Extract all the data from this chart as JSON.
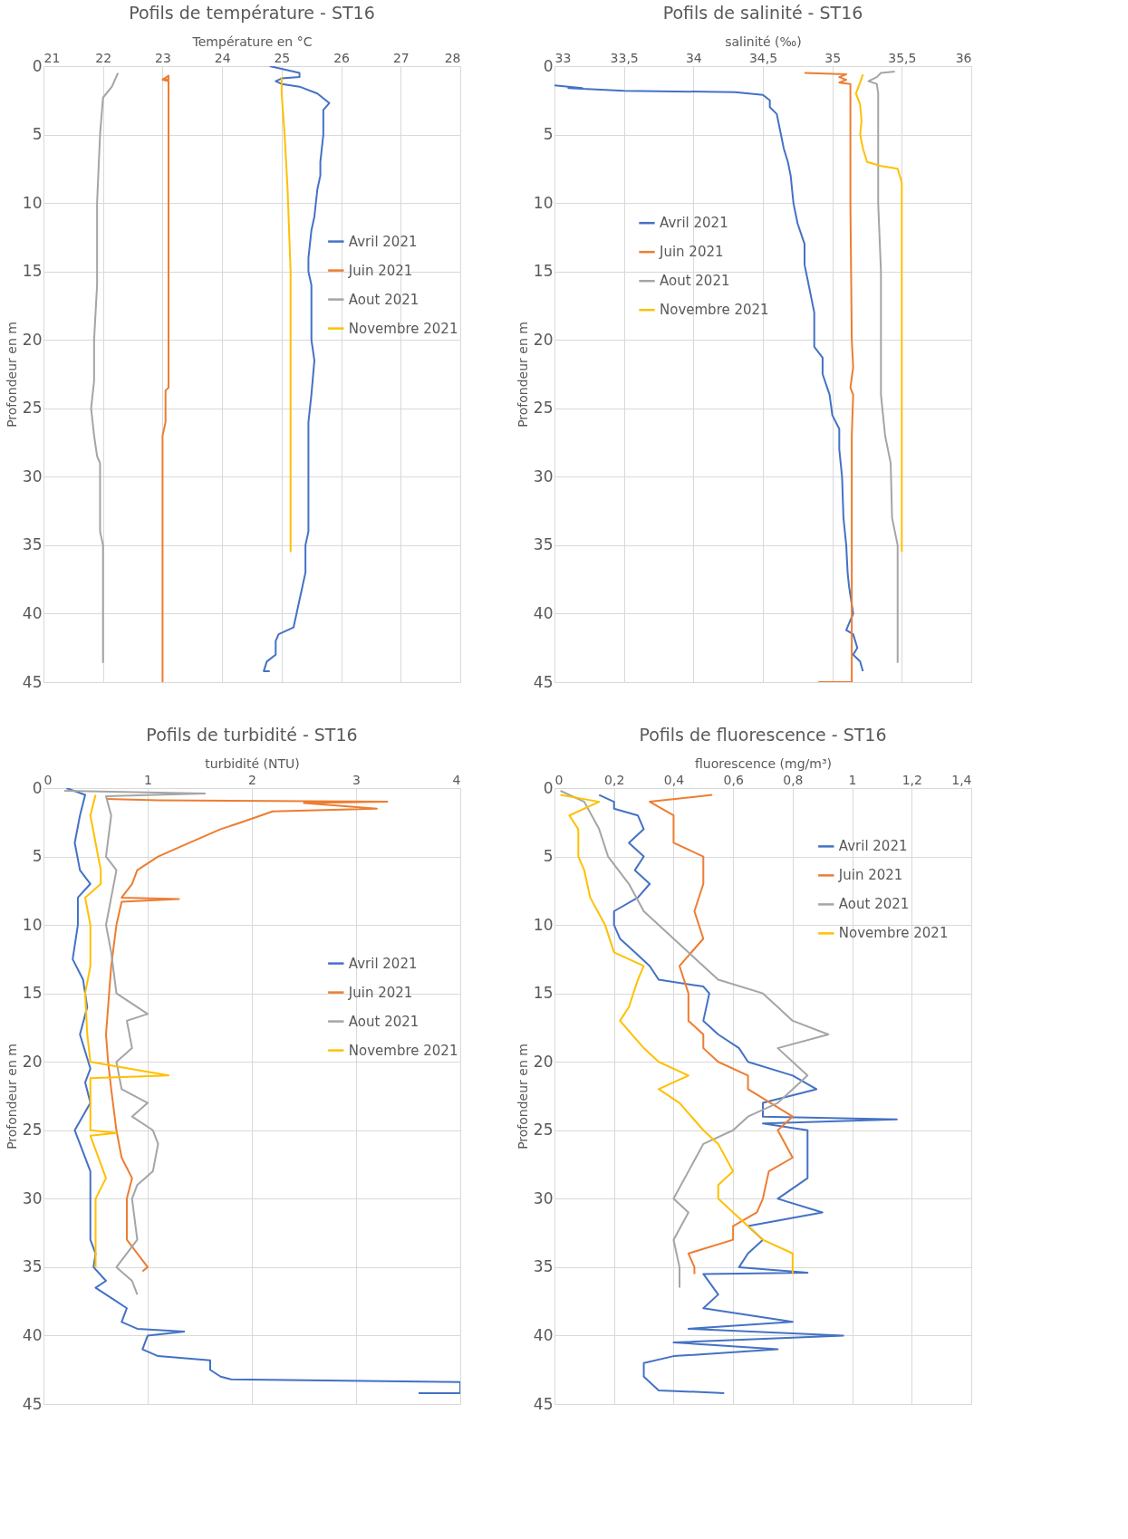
{
  "chart_data": [
    {
      "type": "line",
      "title": "Pofils de température - ST16",
      "xlabel": "Température en °C",
      "ylabel": "Profondeur en m",
      "xlim": [
        21,
        28
      ],
      "xticks": [
        21,
        22,
        23,
        24,
        25,
        26,
        27,
        28
      ],
      "ylim": [
        45,
        0
      ],
      "yticks": [
        0,
        5,
        10,
        15,
        20,
        25,
        30,
        35,
        40,
        45
      ],
      "grid": true,
      "legend": "right",
      "series": [
        {
          "name": "Avril 2021",
          "color": "#4472c4",
          "x": [
            24.8,
            25.1,
            25.3,
            25.3,
            25.0,
            24.9,
            25.0,
            25.3,
            25.6,
            25.8,
            25.7,
            25.7,
            25.65,
            25.65,
            25.6,
            25.55,
            25.5,
            25.45,
            25.45,
            25.5,
            25.5,
            25.55,
            25.5,
            25.45,
            25.45,
            25.45,
            25.45,
            25.4,
            25.4,
            25.35,
            25.3,
            25.25,
            25.2,
            24.95,
            24.9,
            24.9,
            24.75,
            24.7,
            24.8
          ],
          "values": [
            0,
            0.3,
            0.5,
            0.8,
            0.9,
            1.1,
            1.3,
            1.5,
            2.0,
            2.7,
            3.2,
            5,
            7,
            8,
            9,
            11,
            12,
            14,
            15,
            16,
            20,
            21.5,
            24,
            26,
            27,
            30,
            34,
            35,
            37,
            38,
            39,
            40,
            41,
            41.5,
            42,
            43,
            43.5,
            44.2,
            44.2
          ]
        },
        {
          "name": "Juin 2021",
          "color": "#ed7d31",
          "x": [
            23.0,
            23.1,
            23.1,
            23.0,
            23.1,
            23.1,
            23.1,
            23.1,
            23.1,
            23.05,
            23.05,
            23.0,
            23.0,
            23.0,
            23.0
          ],
          "values": [
            0.9,
            1.0,
            0.7,
            1.0,
            1.1,
            10,
            20,
            22,
            23.5,
            23.7,
            26,
            27,
            30,
            33,
            45
          ]
        },
        {
          "name": "Aout 2021",
          "color": "#a5a5a5",
          "x": [
            22.25,
            22.2,
            22.15,
            22.0,
            21.95,
            21.9,
            21.9,
            21.9,
            21.85,
            21.85,
            21.8,
            21.85,
            21.9,
            21.95,
            21.95,
            21.95,
            22.0,
            22.0
          ],
          "values": [
            0.5,
            1.0,
            1.5,
            2.3,
            5,
            10,
            11,
            16,
            20,
            23,
            25,
            27,
            28.5,
            29,
            33,
            34,
            35,
            43.6
          ]
        },
        {
          "name": "Novembre 2021",
          "color": "#ffc000",
          "x": [
            25.0,
            25.0,
            25.05,
            25.1,
            25.15,
            25.15,
            25.15
          ],
          "values": [
            0.8,
            2,
            5,
            9,
            15,
            20,
            35.5
          ]
        }
      ]
    },
    {
      "type": "line",
      "title": "Pofils de salinité - ST16",
      "xlabel": "salinité (‰)",
      "ylabel": "Profondeur en m",
      "xlim": [
        33,
        36
      ],
      "xticks": [
        33,
        {
          "value": 33.5,
          "label": "33,5"
        },
        34,
        {
          "value": 34.5,
          "label": "34,5"
        },
        35,
        {
          "value": 35.5,
          "label": "35,5"
        },
        36
      ],
      "ylim": [
        45,
        0
      ],
      "yticks": [
        0,
        5,
        10,
        15,
        20,
        25,
        30,
        35,
        40,
        45
      ],
      "grid": true,
      "legend": "left",
      "series": [
        {
          "name": "Avril 2021",
          "color": "#4472c4",
          "x": [
            33.0,
            33.2,
            33.1,
            33.5,
            34.3,
            34.5,
            34.55,
            34.55,
            34.6,
            34.63,
            34.65,
            34.68,
            34.7,
            34.72,
            34.75,
            34.8,
            34.8,
            34.82,
            34.85,
            34.87,
            34.87,
            34.93,
            34.93,
            34.98,
            35.0,
            35.05,
            35.05,
            35.07,
            35.08,
            35.1,
            35.11,
            35.12,
            35.15,
            35.1,
            35.15,
            35.18,
            35.15,
            35.2,
            35.22
          ],
          "values": [
            1.4,
            1.6,
            1.6,
            1.8,
            1.9,
            2.1,
            2.5,
            3,
            3.5,
            5,
            6,
            7,
            8,
            10,
            11.5,
            13,
            14.5,
            15.5,
            17,
            18,
            20.5,
            21.3,
            22.5,
            24,
            25.5,
            26.5,
            28,
            30,
            33,
            35,
            37,
            38,
            40,
            41.2,
            41.5,
            42.5,
            43,
            43.5,
            44.2
          ]
        },
        {
          "name": "Juin 2021",
          "color": "#ed7d31",
          "x": [
            34.8,
            35.1,
            35.05,
            35.1,
            35.05,
            35.13,
            35.13,
            35.14,
            35.15,
            35.13,
            35.15,
            35.14,
            35.14,
            35.14,
            35.14,
            34.9
          ],
          "values": [
            0.5,
            0.6,
            0.8,
            1.0,
            1.2,
            1.3,
            10,
            20,
            22,
            23.5,
            24,
            27,
            30,
            40,
            45,
            45
          ]
        },
        {
          "name": "Aout 2021",
          "color": "#a5a5a5",
          "x": [
            35.45,
            35.35,
            35.32,
            35.26,
            35.32,
            35.33,
            35.33,
            35.33,
            35.35,
            35.35,
            35.35,
            35.38,
            35.4,
            35.42,
            35.43,
            35.47,
            35.47
          ],
          "values": [
            0.4,
            0.5,
            0.8,
            1.1,
            1.3,
            2,
            5,
            10,
            15,
            20,
            24,
            27,
            28,
            29,
            33,
            35,
            43.6
          ]
        },
        {
          "name": "Novembre 2021",
          "color": "#ffc000",
          "x": [
            35.22,
            35.2,
            35.17,
            35.2,
            35.21,
            35.2,
            35.22,
            35.25,
            35.35,
            35.47,
            35.5,
            35.5,
            35.5,
            35.5
          ],
          "values": [
            0.6,
            1.2,
            2,
            2.8,
            4,
            5,
            6,
            7,
            7.3,
            7.5,
            8.5,
            12,
            20,
            35.5
          ]
        }
      ]
    },
    {
      "type": "line",
      "title": "Pofils de turbidité - ST16",
      "xlabel": "turbidité (NTU)",
      "ylabel": "Profondeur en m",
      "xlim": [
        0,
        4
      ],
      "xticks": [
        0,
        1,
        2,
        3,
        4
      ],
      "ylim": [
        45,
        0
      ],
      "yticks": [
        0,
        5,
        10,
        15,
        20,
        25,
        30,
        35,
        40,
        45
      ],
      "grid": true,
      "legend": "right",
      "series": [
        {
          "name": "Avril 2021",
          "color": "#4472c4",
          "x": [
            0.22,
            0.4,
            0.35,
            0.3,
            0.35,
            0.45,
            0.33,
            0.33,
            0.28,
            0.38,
            0.42,
            0.35,
            0.45,
            0.4,
            0.45,
            0.3,
            0.35,
            0.45,
            0.45,
            0.45,
            0.5,
            0.48,
            0.6,
            0.5,
            0.7,
            0.8,
            0.75,
            0.9,
            1.35,
            1.0,
            0.95,
            1.1,
            1.6,
            1.6,
            1.7,
            1.8,
            4.0,
            4.0,
            3.6
          ],
          "values": [
            0,
            0.5,
            2,
            4,
            6,
            7,
            8,
            10,
            12.5,
            14,
            16,
            18,
            20.5,
            21.5,
            23,
            25,
            26,
            28,
            30,
            33,
            34,
            35,
            36,
            36.5,
            37.5,
            38,
            39,
            39.5,
            39.7,
            40,
            41,
            41.5,
            41.8,
            42.5,
            43,
            43.2,
            43.4,
            44.2,
            44.2
          ]
        },
        {
          "name": "Juin 2021",
          "color": "#ed7d31",
          "x": [
            0.6,
            1.1,
            3.3,
            2.5,
            3.2,
            2.2,
            1.9,
            1.7,
            1.4,
            1.1,
            0.9,
            0.85,
            0.75,
            1.3,
            0.75,
            0.7,
            0.65,
            0.63,
            0.6,
            0.62,
            0.65,
            0.7,
            0.75,
            0.85,
            0.8,
            0.8,
            1.0,
            0.95
          ],
          "values": [
            0.8,
            0.9,
            1.0,
            1.1,
            1.5,
            1.7,
            2.5,
            3,
            4,
            5,
            6,
            7,
            8,
            8.1,
            8.3,
            10,
            13,
            15,
            18,
            20,
            22,
            25,
            27,
            28.5,
            30,
            33,
            35,
            35.3
          ]
        },
        {
          "name": "Aout 2021",
          "color": "#a5a5a5",
          "x": [
            0.2,
            1.55,
            0.6,
            0.65,
            0.6,
            0.7,
            0.65,
            0.6,
            0.65,
            0.7,
            1.0,
            0.8,
            0.85,
            0.7,
            0.75,
            1.0,
            0.85,
            1.05,
            1.1,
            1.05,
            0.9,
            0.85,
            0.9,
            0.7,
            0.85,
            0.9
          ],
          "values": [
            0.2,
            0.4,
            0.6,
            2,
            5,
            6,
            8,
            10,
            12,
            15,
            16.5,
            17,
            19,
            20,
            22,
            23,
            24,
            25,
            26,
            28,
            29,
            30,
            33,
            35,
            36,
            37
          ]
        },
        {
          "name": "Novembre 2021",
          "color": "#ffc000",
          "x": [
            0.5,
            0.45,
            0.5,
            0.55,
            0.55,
            0.4,
            0.45,
            0.45,
            0.4,
            0.42,
            0.45,
            1.2,
            0.45,
            0.45,
            0.7,
            0.45,
            0.6,
            0.5,
            0.5,
            0.5
          ],
          "values": [
            0.5,
            2,
            4,
            6,
            7,
            8,
            10,
            13,
            15,
            18,
            20,
            21,
            21.2,
            25,
            25.2,
            25.4,
            28.5,
            30,
            33,
            35
          ]
        }
      ]
    },
    {
      "type": "line",
      "title": "Pofils de fluorescence - ST16",
      "xlabel": "fluorescence (mg/m³)",
      "ylabel": "Profondeur en m",
      "xlim": [
        0,
        1.4
      ],
      "xticks": [
        0,
        {
          "value": 0.2,
          "label": "0,2"
        },
        {
          "value": 0.4,
          "label": "0,4"
        },
        {
          "value": 0.6,
          "label": "0,6"
        },
        {
          "value": 0.8,
          "label": "0,8"
        },
        1,
        {
          "value": 1.2,
          "label": "1,2"
        },
        {
          "value": 1.4,
          "label": "1,4"
        }
      ],
      "ylim": [
        45,
        0
      ],
      "yticks": [
        0,
        5,
        10,
        15,
        20,
        25,
        30,
        35,
        40,
        45
      ],
      "grid": true,
      "legend": "top right",
      "series": [
        {
          "name": "Avril 2021",
          "color": "#4472c4",
          "x": [
            0.15,
            0.2,
            0.2,
            0.28,
            0.3,
            0.25,
            0.3,
            0.27,
            0.32,
            0.28,
            0.2,
            0.2,
            0.22,
            0.27,
            0.32,
            0.35,
            0.5,
            0.52,
            0.5,
            0.55,
            0.62,
            0.65,
            0.8,
            0.88,
            0.7,
            0.7,
            1.15,
            0.7,
            0.85,
            0.85,
            0.85,
            0.75,
            0.9,
            0.65,
            0.7,
            0.65,
            0.62,
            0.85,
            0.5,
            0.55,
            0.5,
            0.8,
            0.45,
            0.97,
            0.4,
            0.75,
            0.4,
            0.3,
            0.3,
            0.35,
            0.57
          ],
          "values": [
            0.5,
            1,
            1.5,
            2,
            3,
            4,
            5,
            6,
            7,
            8,
            9,
            10,
            11,
            12,
            13,
            14,
            14.5,
            15,
            17,
            18,
            19,
            20,
            21,
            22,
            23,
            24,
            24.2,
            24.5,
            25,
            27,
            28.5,
            30,
            31,
            32,
            33,
            34,
            35,
            35.4,
            35.5,
            37,
            38,
            39,
            39.5,
            40,
            40.5,
            41,
            41.5,
            42,
            43,
            44,
            44.2
          ]
        },
        {
          "name": "Juin 2021",
          "color": "#ed7d31",
          "x": [
            0.53,
            0.32,
            0.4,
            0.4,
            0.4,
            0.5,
            0.5,
            0.47,
            0.5,
            0.42,
            0.45,
            0.45,
            0.5,
            0.5,
            0.55,
            0.65,
            0.65,
            0.8,
            0.75,
            0.8,
            0.72,
            0.7,
            0.68,
            0.6,
            0.6,
            0.45,
            0.47,
            0.47
          ],
          "values": [
            0.5,
            1,
            2,
            3,
            4,
            5,
            7,
            9,
            11,
            13,
            15,
            17,
            18,
            19,
            20,
            21,
            22,
            24,
            25,
            27,
            28,
            30,
            31,
            32,
            33,
            34,
            35,
            35.5
          ]
        },
        {
          "name": "Aout 2021",
          "color": "#a5a5a5",
          "x": [
            0.02,
            0.1,
            0.15,
            0.18,
            0.25,
            0.3,
            0.4,
            0.5,
            0.55,
            0.7,
            0.75,
            0.8,
            0.92,
            0.75,
            0.85,
            0.8,
            0.75,
            0.65,
            0.6,
            0.5,
            0.45,
            0.4,
            0.45,
            0.4,
            0.42,
            0.42
          ],
          "values": [
            0.2,
            1,
            3,
            5,
            7,
            9,
            11,
            13,
            14,
            15,
            16,
            17,
            18,
            19,
            21,
            22,
            23,
            24,
            25,
            26,
            28,
            30,
            31,
            33,
            35,
            36.5
          ]
        },
        {
          "name": "Novembre 2021",
          "color": "#ffc000",
          "x": [
            0.02,
            0.15,
            0.05,
            0.08,
            0.08,
            0.1,
            0.12,
            0.17,
            0.2,
            0.3,
            0.28,
            0.25,
            0.22,
            0.3,
            0.35,
            0.45,
            0.35,
            0.42,
            0.5,
            0.55,
            0.6,
            0.55,
            0.55,
            0.6,
            0.65,
            0.7,
            0.8,
            0.8,
            0.8
          ],
          "values": [
            0.5,
            1,
            2,
            3,
            5,
            6,
            8,
            10,
            12,
            13,
            14,
            16,
            17,
            19,
            20,
            21,
            22,
            23,
            25,
            26,
            28,
            29,
            30,
            31,
            32,
            33,
            34,
            35,
            35.5
          ]
        }
      ]
    }
  ]
}
